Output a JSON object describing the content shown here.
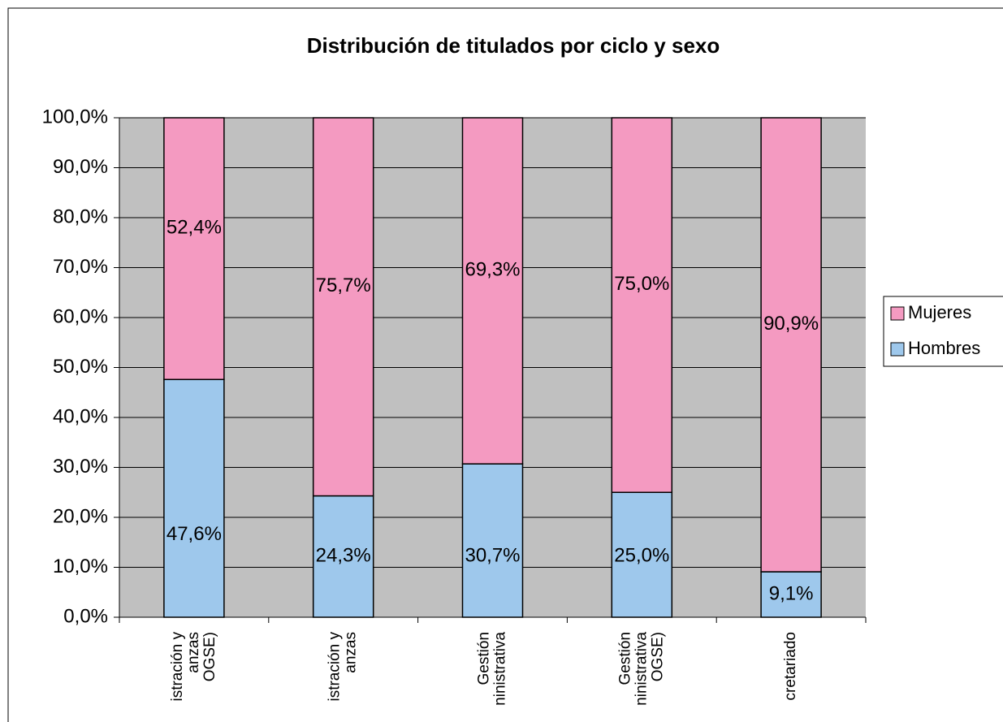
{
  "chart_data": {
    "type": "stacked_bar",
    "title": "Distribución de titulados por ciclo y sexo",
    "categories": [
      "istración y\nanzas\nOGSE)",
      "istración y\nanzas",
      "Gestión\nninistrativa",
      "Gestión\nninistrativa\nOGSE)",
      "cretariado"
    ],
    "series": [
      {
        "name": "Hombres",
        "color": "#9ec8ec",
        "values": [
          47.6,
          24.3,
          30.7,
          25.0,
          9.1
        ],
        "value_labels": [
          "47,6%",
          "24,3%",
          "30,7%",
          "25,0%",
          "9,1%"
        ]
      },
      {
        "name": "Mujeres",
        "color": "#f49ac1",
        "values": [
          52.4,
          75.7,
          69.3,
          75.0,
          90.9
        ],
        "value_labels": [
          "52,4%",
          "75,7%",
          "69,3%",
          "75,0%",
          "90,9%"
        ]
      }
    ],
    "ylim": [
      0,
      100
    ],
    "yticks": [
      {
        "value": 0,
        "label": "0,0%"
      },
      {
        "value": 10,
        "label": "10,0%"
      },
      {
        "value": 20,
        "label": "20,0%"
      },
      {
        "value": 30,
        "label": "30,0%"
      },
      {
        "value": 40,
        "label": "40,0%"
      },
      {
        "value": 50,
        "label": "50,0%"
      },
      {
        "value": 60,
        "label": "60,0%"
      },
      {
        "value": 70,
        "label": "70,0%"
      },
      {
        "value": 80,
        "label": "80,0%"
      },
      {
        "value": 90,
        "label": "90,0%"
      },
      {
        "value": 100,
        "label": "100,0%"
      }
    ],
    "grid": true,
    "legend": "right",
    "background": "#c0c0c0"
  }
}
